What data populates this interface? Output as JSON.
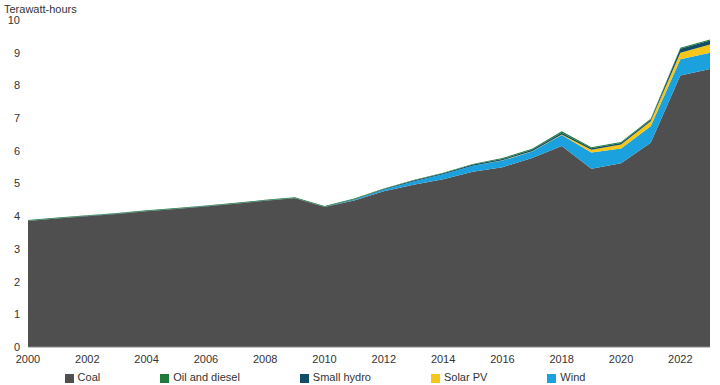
{
  "chart_data": {
    "type": "area",
    "stacked": true,
    "y_label": "Terawatt-hours",
    "x": [
      2000,
      2001,
      2002,
      2003,
      2004,
      2005,
      2006,
      2007,
      2008,
      2009,
      2010,
      2011,
      2012,
      2013,
      2014,
      2015,
      2016,
      2017,
      2018,
      2019,
      2020,
      2021,
      2022,
      2023
    ],
    "series": [
      {
        "name": "Coal",
        "color": "#4f4f4f",
        "values": [
          3.85,
          3.93,
          4.0,
          4.07,
          4.15,
          4.22,
          4.3,
          4.38,
          4.47,
          4.55,
          4.28,
          4.48,
          4.76,
          4.96,
          5.13,
          5.36,
          5.5,
          5.78,
          6.15,
          5.45,
          5.62,
          6.25,
          8.3,
          8.5
        ]
      },
      {
        "name": "Wind",
        "color": "#1ba1de",
        "values": [
          0,
          0,
          0,
          0,
          0,
          0,
          0,
          0,
          0,
          0,
          0,
          0.02,
          0.05,
          0.1,
          0.15,
          0.18,
          0.2,
          0.2,
          0.33,
          0.5,
          0.45,
          0.5,
          0.5,
          0.5
        ]
      },
      {
        "name": "Solar PV",
        "color": "#f6c619",
        "values": [
          0,
          0,
          0,
          0,
          0,
          0,
          0,
          0,
          0,
          0,
          0,
          0,
          0,
          0,
          0,
          0,
          0.01,
          0.01,
          0.02,
          0.08,
          0.12,
          0.15,
          0.2,
          0.25
        ]
      },
      {
        "name": "Small hydro",
        "color": "#124d66",
        "values": [
          0.01,
          0.01,
          0.01,
          0.01,
          0.01,
          0.01,
          0.01,
          0.01,
          0.01,
          0.01,
          0.01,
          0.02,
          0.02,
          0.03,
          0.03,
          0.04,
          0.04,
          0.04,
          0.05,
          0.05,
          0.05,
          0.05,
          0.12,
          0.12
        ]
      },
      {
        "name": "Oil and diesel",
        "color": "#1f7a3c",
        "values": [
          0.02,
          0.02,
          0.02,
          0.02,
          0.02,
          0.02,
          0.02,
          0.02,
          0.02,
          0.02,
          0.02,
          0.02,
          0.02,
          0.02,
          0.02,
          0.02,
          0.03,
          0.03,
          0.05,
          0.03,
          0.03,
          0.03,
          0.03,
          0.03
        ]
      }
    ],
    "xlim": [
      2000,
      2023
    ],
    "xticks": [
      2000,
      2002,
      2004,
      2006,
      2008,
      2010,
      2012,
      2014,
      2016,
      2018,
      2020,
      2022
    ],
    "ylim": [
      0,
      10
    ],
    "yticks": [
      0,
      1,
      2,
      3,
      4,
      5,
      6,
      7,
      8,
      9,
      10
    ],
    "grid": false,
    "legend": "bottom"
  }
}
